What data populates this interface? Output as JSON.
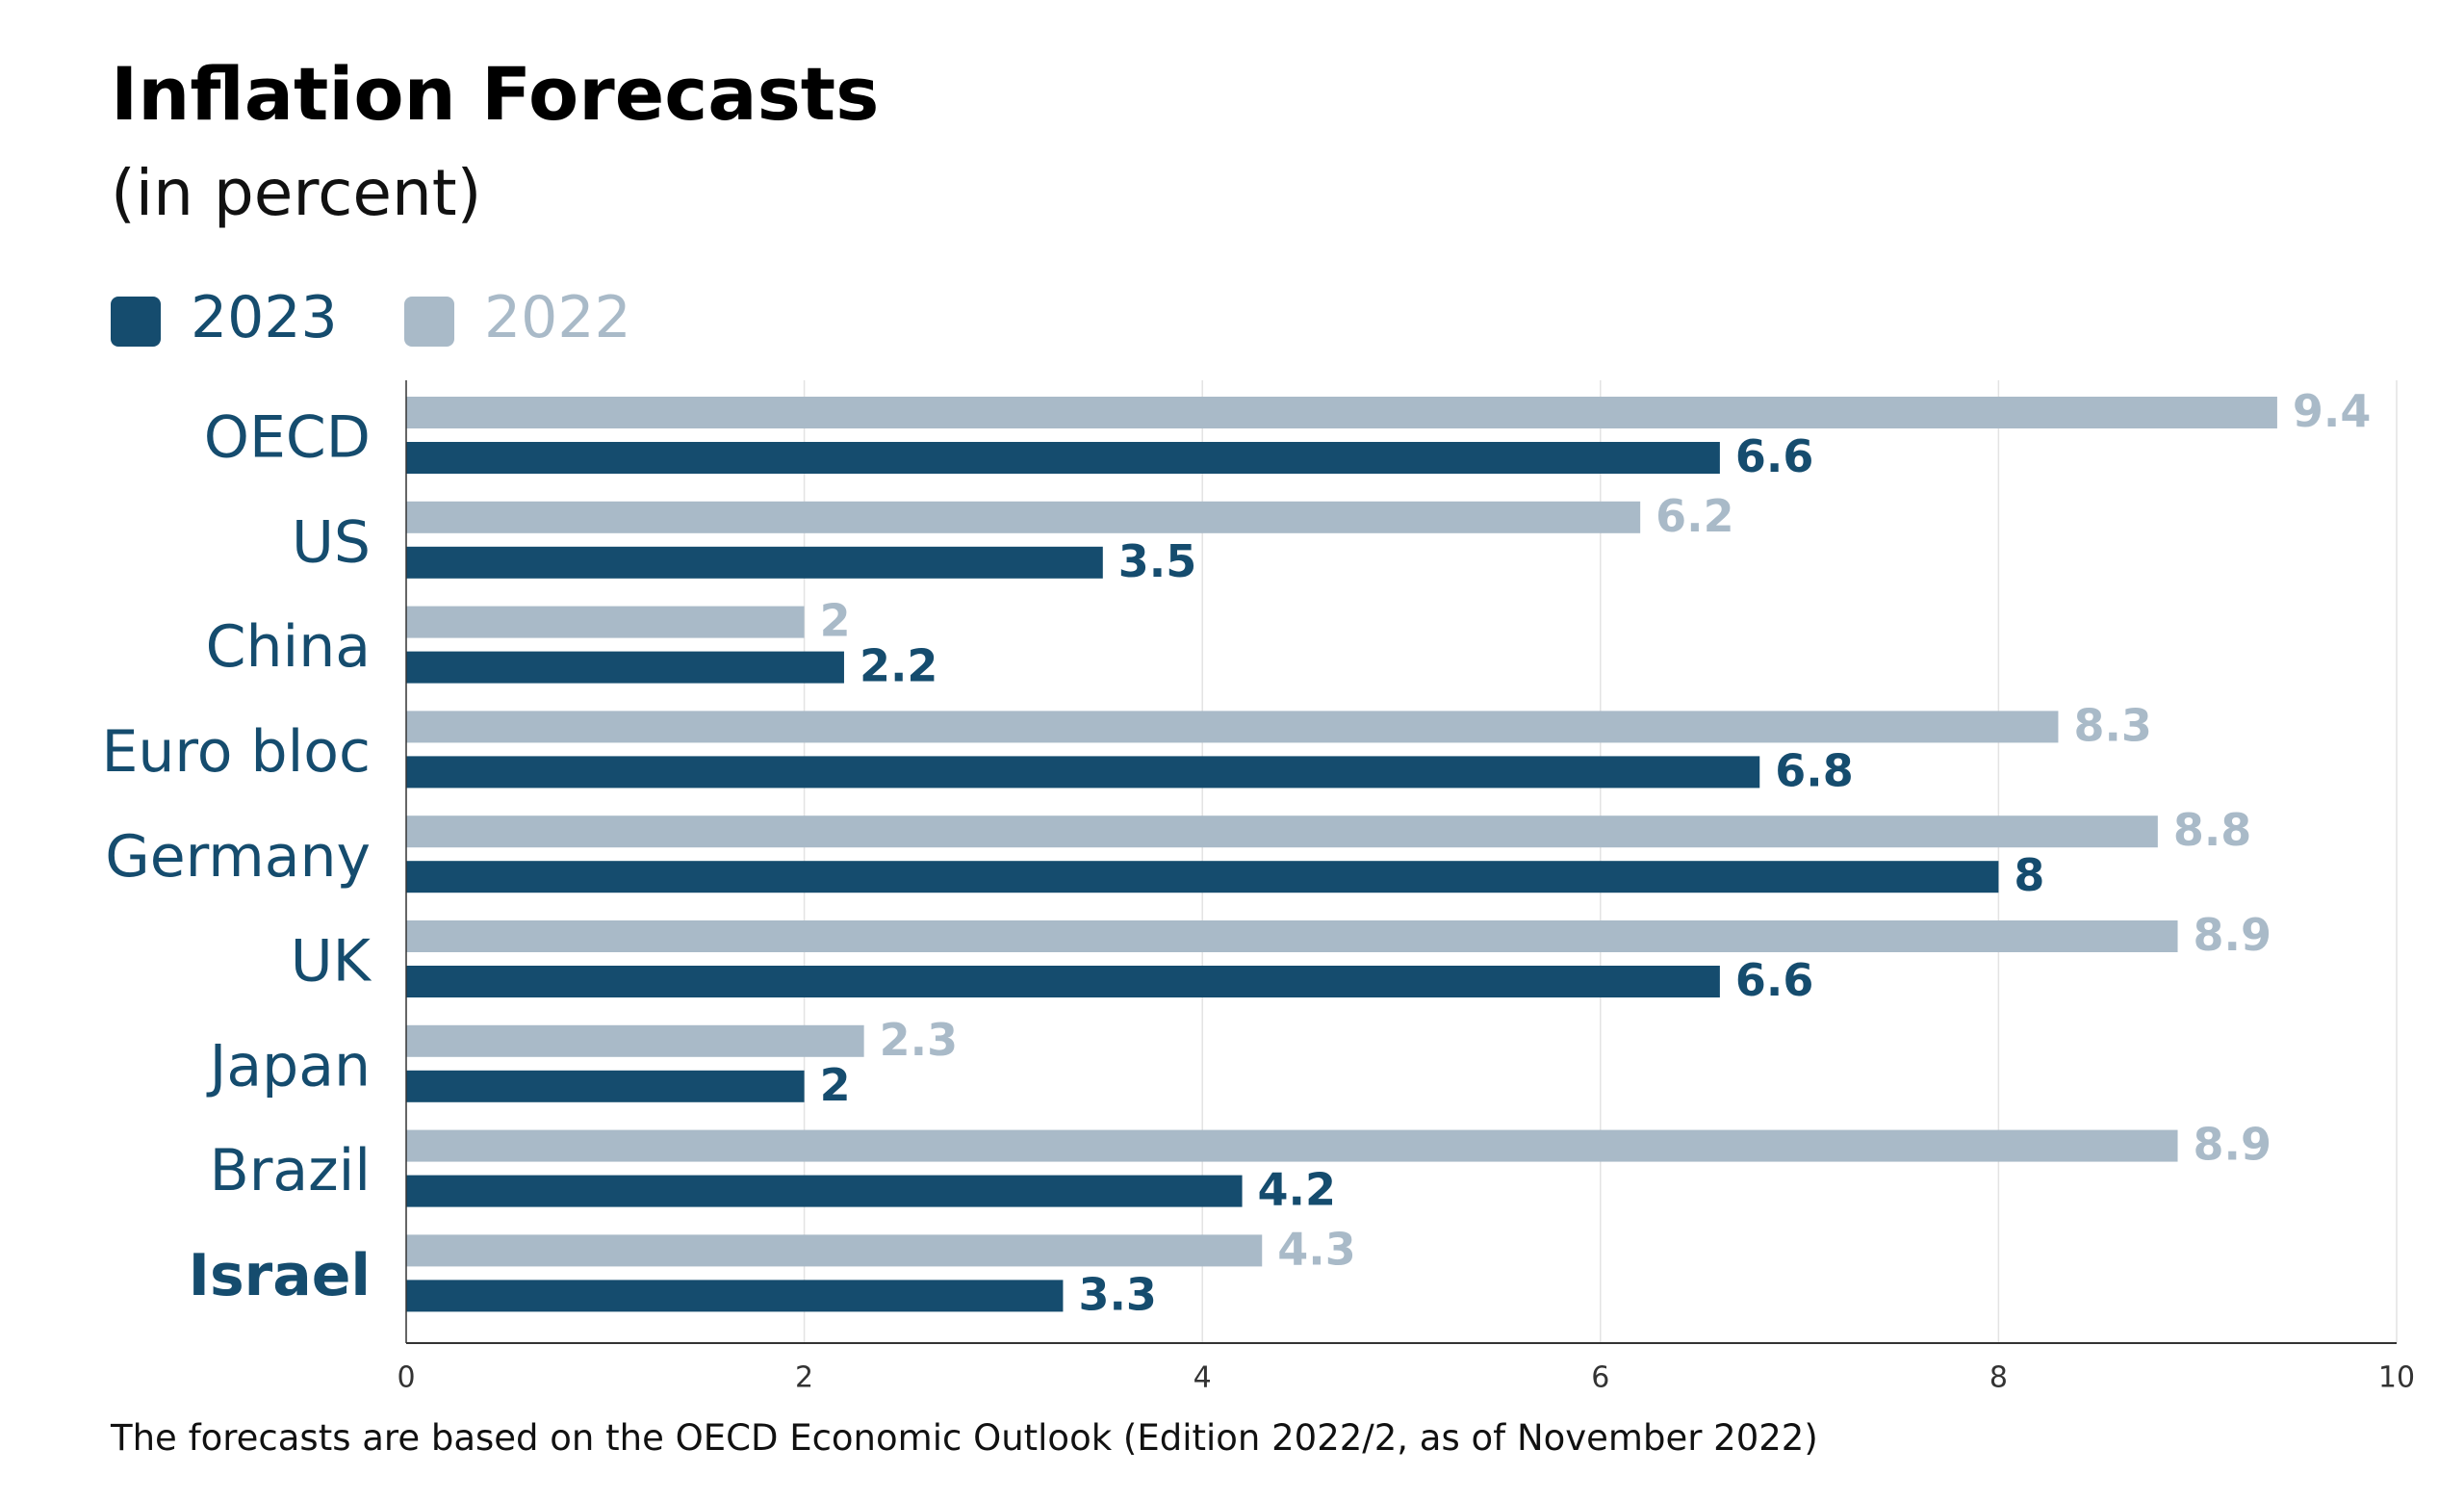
{
  "header": {
    "title": "Inflation Forecasts",
    "subtitle": "(in percent)"
  },
  "legend": {
    "items": [
      {
        "label": "2023",
        "color": "#154c6e"
      },
      {
        "label": "2022",
        "color": "#a9bac8"
      }
    ]
  },
  "footnote": "The forecasts are based on the OECD Economic Outlook (Edition 2022/2, as of November 2022)",
  "colors": {
    "series_2023": "#154c6e",
    "series_2022": "#a9bac8",
    "category_label": "#154c6e",
    "axis": "#333333",
    "grid": "#e3e3e3"
  },
  "chart_data": {
    "type": "bar",
    "orientation": "horizontal",
    "title": "Inflation Forecasts",
    "subtitle": "(in percent)",
    "categories": [
      "OECD",
      "US",
      "China",
      "Euro bloc",
      "Germany",
      "UK",
      "Japan",
      "Brazil",
      "Israel"
    ],
    "highlighted_category": "Israel",
    "series": [
      {
        "name": "2022",
        "values": [
          9.4,
          6.2,
          2,
          8.3,
          8.8,
          8.9,
          2.3,
          8.9,
          4.3
        ]
      },
      {
        "name": "2023",
        "values": [
          6.6,
          3.5,
          2.2,
          6.8,
          8,
          6.6,
          2,
          4.2,
          3.3
        ]
      }
    ],
    "xlim": [
      0,
      10
    ],
    "xticks": [
      0,
      2,
      4,
      6,
      8,
      10
    ],
    "xlabel": "",
    "ylabel": "",
    "grid": true,
    "legend_position": "top-left"
  }
}
